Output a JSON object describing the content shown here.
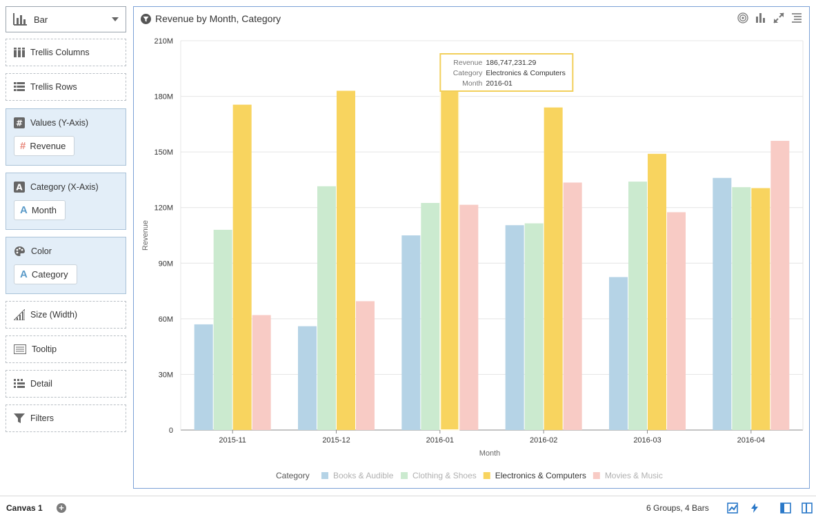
{
  "chart_type": {
    "label": "Bar"
  },
  "grammar": {
    "trellis_columns": "Trellis Columns",
    "trellis_rows": "Trellis Rows",
    "values": {
      "label": "Values (Y-Axis)",
      "pill": "Revenue"
    },
    "category": {
      "label": "Category (X-Axis)",
      "pill": "Month"
    },
    "color": {
      "label": "Color",
      "pill": "Category"
    },
    "size": "Size (Width)",
    "tooltip": "Tooltip",
    "detail": "Detail",
    "filters": "Filters"
  },
  "chart_title": "Revenue by Month, Category",
  "chart_data": {
    "type": "bar",
    "title": "Revenue by Month, Category",
    "xlabel": "Month",
    "ylabel": "Revenue",
    "ylim": [
      0,
      210000000
    ],
    "yticks": [
      0,
      30000000,
      60000000,
      90000000,
      120000000,
      150000000,
      180000000,
      210000000
    ],
    "ytick_labels": [
      "0",
      "30M",
      "60M",
      "90M",
      "120M",
      "150M",
      "180M",
      "210M"
    ],
    "categories": [
      "2015-11",
      "2015-12",
      "2016-01",
      "2016-02",
      "2016-03",
      "2016-04"
    ],
    "grid": true,
    "legend_position": "bottom",
    "legend_title": "Category",
    "series": [
      {
        "name": "Books & Audible",
        "color": "#b5d3e6",
        "values": [
          57000000,
          56000000,
          105000000,
          110500000,
          82500000,
          136000000
        ]
      },
      {
        "name": "Clothing & Shoes",
        "color": "#cbeacf",
        "values": [
          108000000,
          131500000,
          122500000,
          111500000,
          134000000,
          131000000
        ]
      },
      {
        "name": "Electronics & Computers",
        "color": "#f8d45f",
        "values": [
          175500000,
          183000000,
          186747231.29,
          174000000,
          149000000,
          130500000
        ]
      },
      {
        "name": "Movies & Music",
        "color": "#f8cbc5",
        "values": [
          62000000,
          69500000,
          121500000,
          133500000,
          117500000,
          156000000
        ]
      }
    ],
    "highlighted": {
      "series": "Electronics & Computers",
      "category": "2016-01"
    },
    "tooltip": {
      "rows": [
        {
          "key": "Revenue",
          "value": "186,747,231.29"
        },
        {
          "key": "Category",
          "value": "Electronics & Computers"
        },
        {
          "key": "Month",
          "value": "2016-01"
        }
      ]
    }
  },
  "footer": {
    "canvas_tab": "Canvas 1",
    "status": "6 Groups, 4 Bars"
  },
  "colors": {
    "accent": "#2a78c8",
    "frame_border": "#7aa0d6",
    "panel_fill": "#e3eef8"
  }
}
